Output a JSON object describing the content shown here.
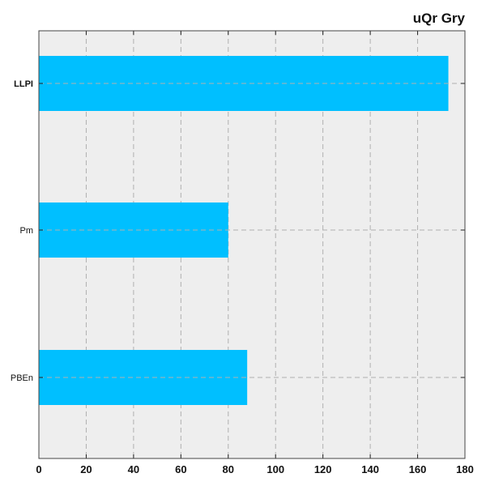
{
  "chart_data": {
    "type": "bar",
    "orientation": "horizontal",
    "title": "uQr  Gry",
    "xlabel": "",
    "ylabel": "",
    "categories": [
      "LLPI",
      "Pm",
      "PBEn"
    ],
    "values": [
      173,
      80,
      88
    ],
    "xlim": [
      0,
      180
    ],
    "xticks": [
      0,
      20,
      40,
      60,
      80,
      100,
      120,
      140,
      160,
      180
    ],
    "grid": true,
    "legend": "none",
    "colors": {
      "bar": "#00bfff",
      "plot_background": "#eeeeee",
      "grid": "#b0b0b0"
    }
  }
}
